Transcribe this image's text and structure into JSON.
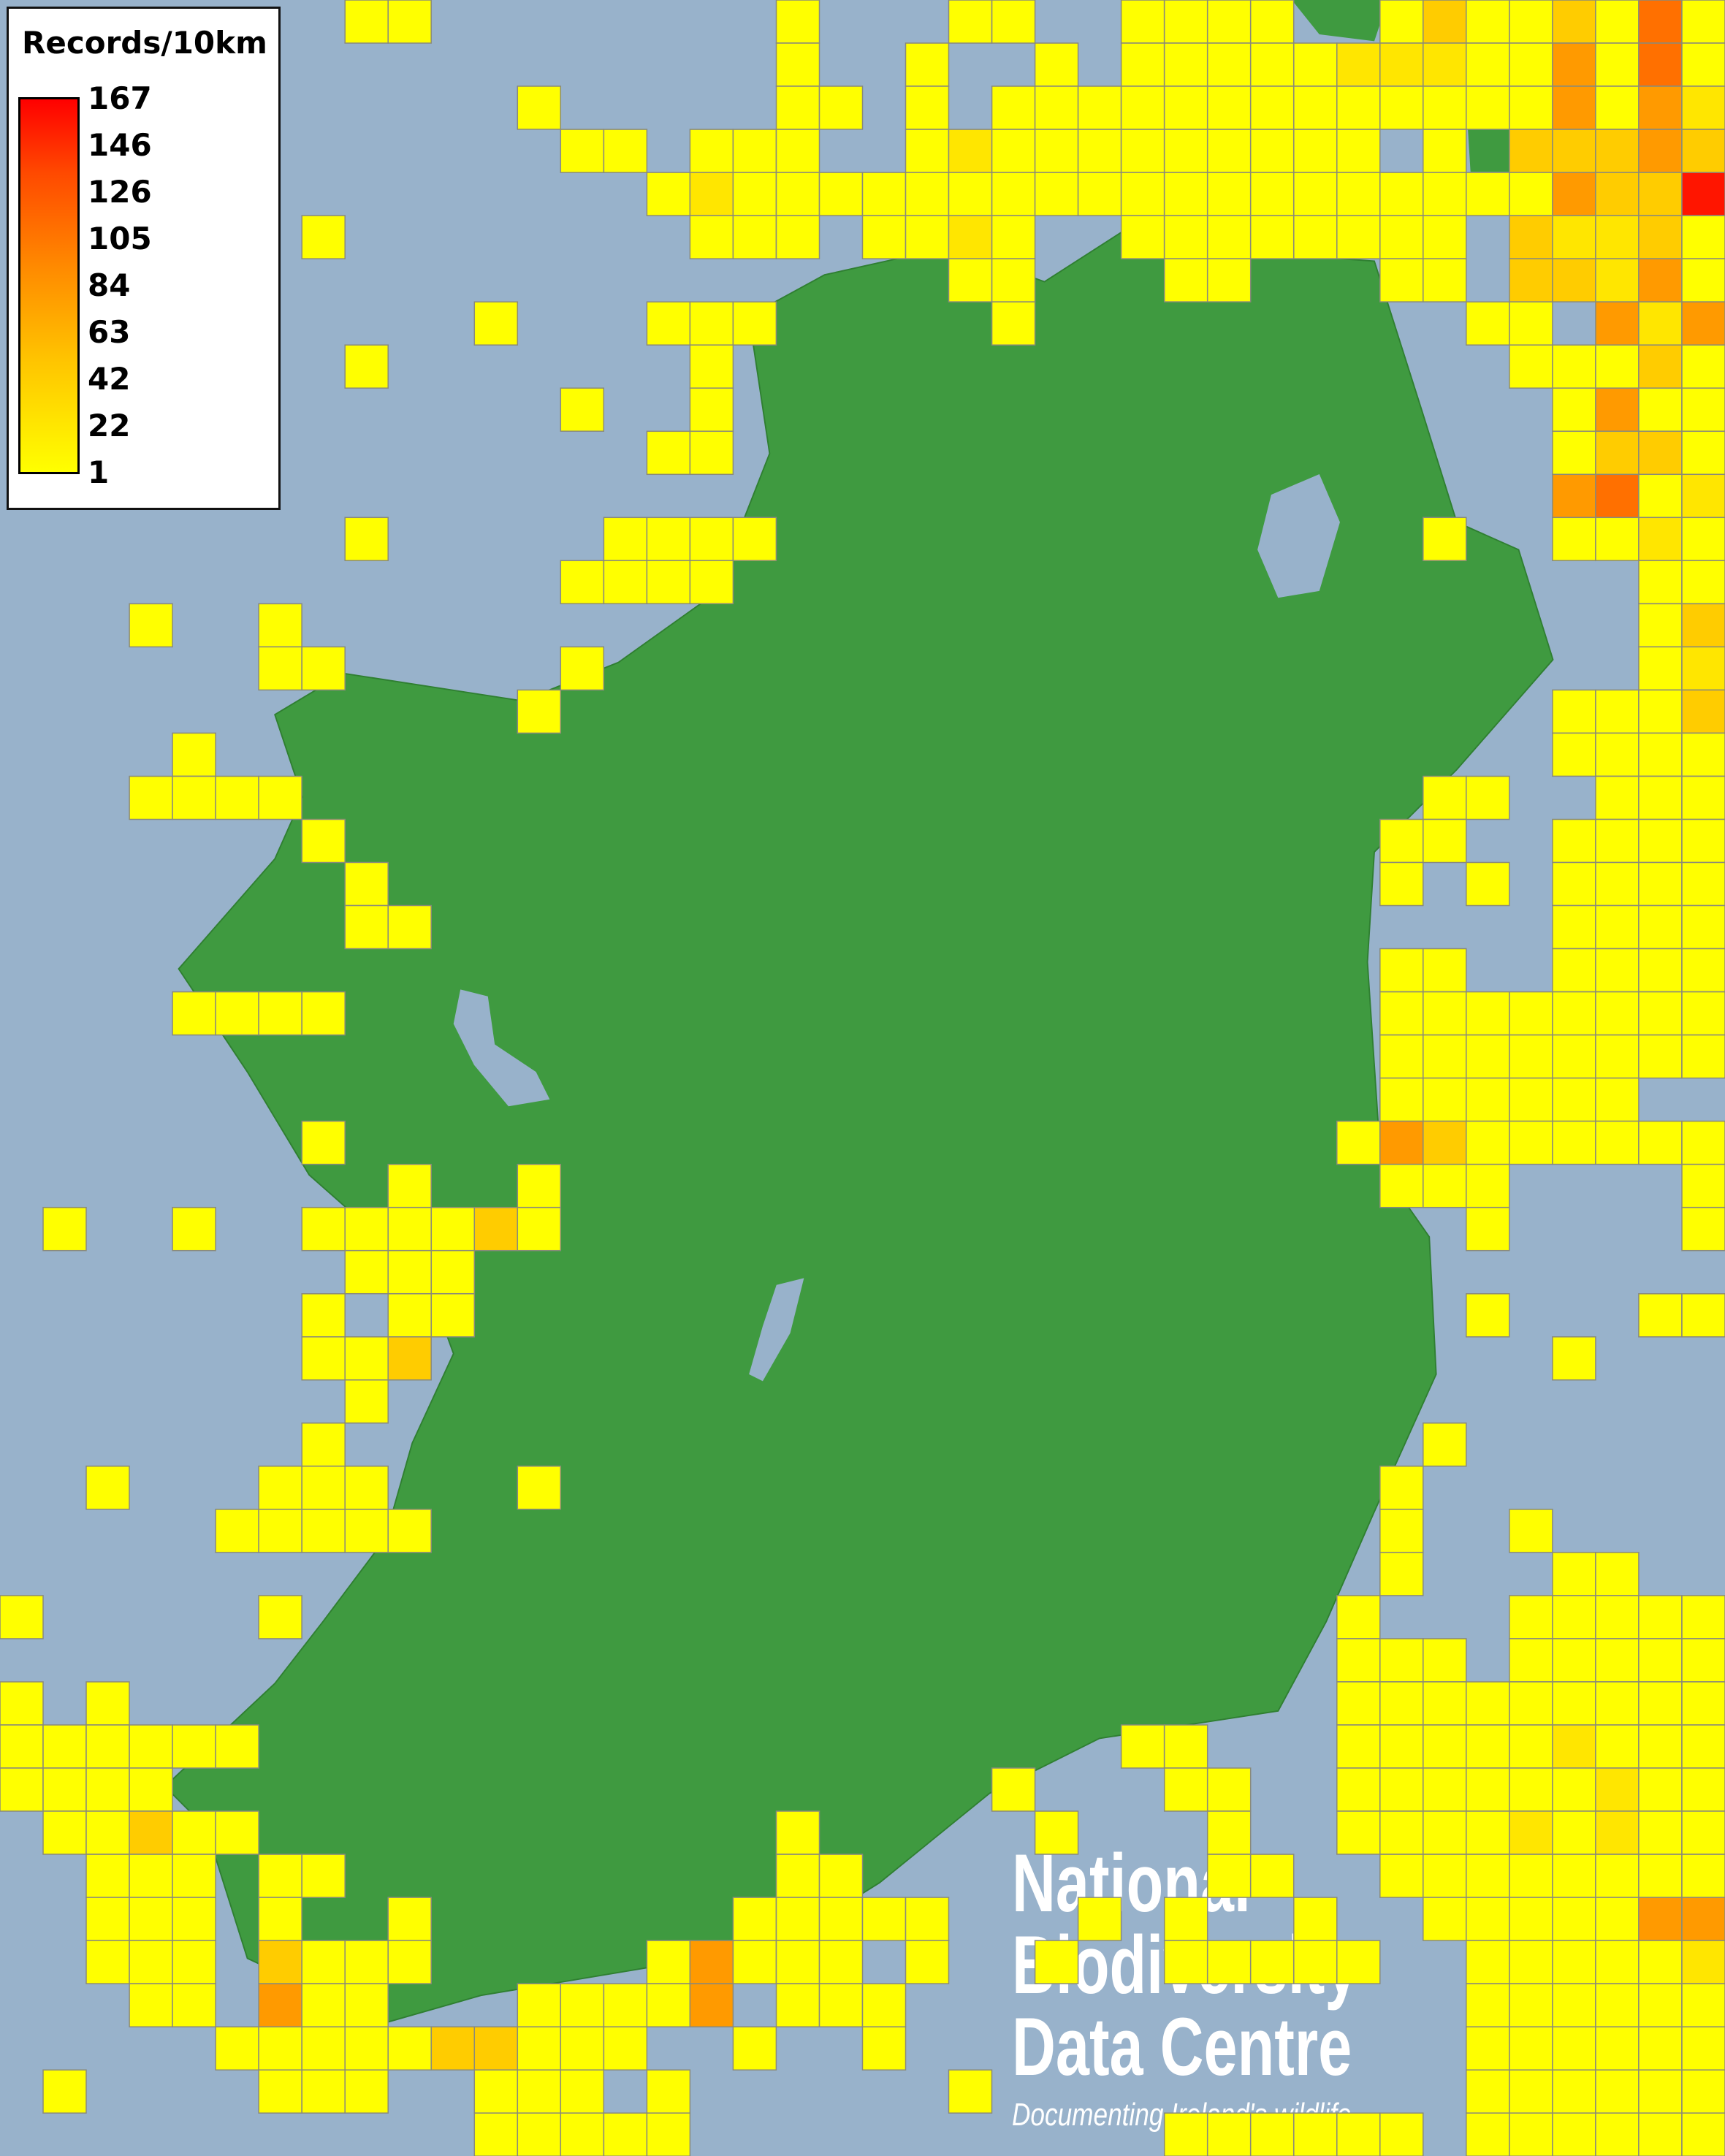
{
  "legend": {
    "title": "Records/10km",
    "ticks": [
      "167",
      "146",
      "126",
      "105",
      "84",
      "63",
      "42",
      "22",
      "1"
    ],
    "gradient_colors": [
      "#ffff00",
      "#ffc400",
      "#ff8a00",
      "#ff4a00",
      "#ff0000"
    ]
  },
  "logo": {
    "line1": "National",
    "line2": "Biodiversity",
    "line3": "Data Centre",
    "tagline": "Documenting Ireland's wildlife"
  },
  "colors": {
    "sea": "#98b2cb",
    "land": "#3f9a40",
    "cell_border": "#8a8a7a",
    "levels": {
      "1": "#ffff00",
      "2": "#ffe600",
      "3": "#ffcc00",
      "4": "#ff9a00",
      "5": "#ff7000",
      "6": "#ff1500"
    }
  },
  "level_legend": {
    "1": "1-21",
    "2": "22-41",
    "3": "42-62",
    "4": "63-104",
    "5": "105-145",
    "6": "146-167"
  },
  "grid": {
    "cell_size_km": 10,
    "rows": [
      "........11........1...11..1111..13113151",
      "..................1..1..1.11111222114151",
      "............1.....11.1.11111111111114142",
      ".............11.111..12111111111.1.33343",
      "...............12111111111111111111143362",
      ".......1........111.1121..11111111.32231",
      "......................11...11...11.33241",
      "...........1...111.....1..........11.4242",
      "........1.......1..................1113132",
      ".............1..1...................141121.",
      "...............11...................133111",
      "....................................451211",
      "........1.....1111...............1..1121",
      ".............1111.....................1111",
      "...1..1...............................1311",
      "......11.....1........................1211",
      "............1.......................111311",
      "....1...............................111112",
      "...1111..........................11..111",
      ".......1........................11..1111",
      "........1.......................1.1.1111",
      "........11..........................111111",
      "................................11..1111",
      "....1111........................11111111",
      "................................11111111",
      "................................111111..",
      ".......1.......................143111111",
      ".........1..1...................111....1",
      ".1..1..111131.....................1....1.",
      "........111.............................1.",
      ".......1.11.......................1...11.",
      ".......113..........................1...",
      "........1...............................",
      ".......1.........................1......",
      "..1...111...1...................1.......",
      ".....11111......................1..1....",
      "................................1...11..",
      "1.....1........................1...11111",
      "...............................111.11111",
      "1.1............................111111111",
      "111111....................11...111112111",
      "1111...................1...11..111111211",
      ".11311............1.....1...1..111121211",
      "..111.11..........11........11..11111111",
      "..111.1..1.......11111...1.1..1..1111144",
      "..111.3111.....14111 1..1..11111..1111121",
      "...11.411...11114.111.............1111111",
      ".....1111133111..1..1.............1111111",
      ".1....111..111.1......1...........1111111",
      "...........11111...........111111.111111"
    ]
  }
}
